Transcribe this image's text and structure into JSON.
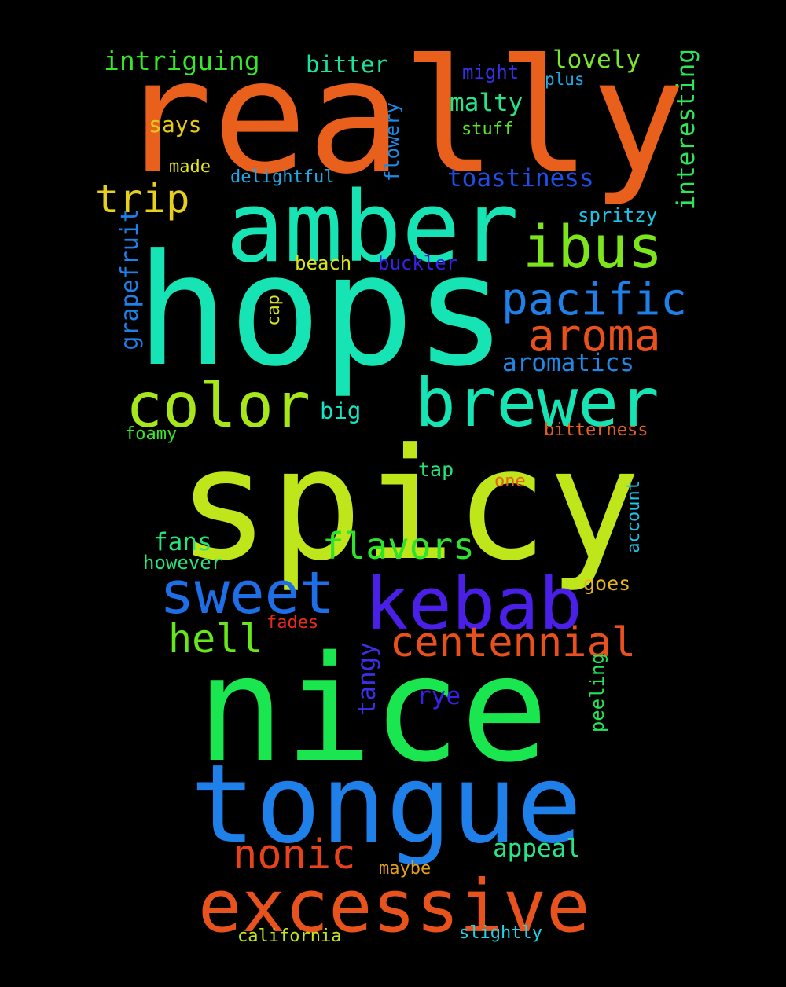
{
  "words": [
    {
      "text": "really",
      "color": "#e8601c"
    },
    {
      "text": "hops",
      "color": "#16e4b4"
    },
    {
      "text": "spicy",
      "color": "#bfe61b"
    },
    {
      "text": "nice",
      "color": "#1ae64f"
    },
    {
      "text": "tongue",
      "color": "#1e80e8"
    },
    {
      "text": "amber",
      "color": "#16e4b4"
    },
    {
      "text": "excessive",
      "color": "#e8521c"
    },
    {
      "text": "kebab",
      "color": "#4a20e8"
    },
    {
      "text": "brewer",
      "color": "#16e4b4"
    },
    {
      "text": "color",
      "color": "#a6e61b"
    },
    {
      "text": "sweet",
      "color": "#1e6ee8"
    },
    {
      "text": "ibus",
      "color": "#7ce61b"
    },
    {
      "text": "pacific",
      "color": "#1e80e8"
    },
    {
      "text": "aroma",
      "color": "#e8501c"
    },
    {
      "text": "centennial",
      "color": "#e8501c"
    },
    {
      "text": "nonic",
      "color": "#e8421c"
    },
    {
      "text": "flavors",
      "color": "#2ee42a"
    },
    {
      "text": "hell",
      "color": "#66e61b"
    },
    {
      "text": "trip",
      "color": "#e6d01b"
    },
    {
      "text": "intriguing",
      "color": "#38e62a"
    },
    {
      "text": "bitter",
      "color": "#16e4a0"
    },
    {
      "text": "lovely",
      "color": "#7ce62a"
    },
    {
      "text": "malty",
      "color": "#26e488"
    },
    {
      "text": "aromatics",
      "color": "#1e8ae8"
    },
    {
      "text": "toastiness",
      "color": "#1e50e8"
    },
    {
      "text": "interesting",
      "color": "#2ee45a"
    },
    {
      "text": "grapefruit",
      "color": "#1e80e8"
    },
    {
      "text": "fans",
      "color": "#26e47a"
    },
    {
      "text": "appeal",
      "color": "#26e488"
    },
    {
      "text": "rye",
      "color": "#3a20e8"
    },
    {
      "text": "tangy",
      "color": "#3a30e8"
    },
    {
      "text": "peeling",
      "color": "#26e45a"
    },
    {
      "text": "big",
      "color": "#16e4c4"
    },
    {
      "text": "says",
      "color": "#e6c81b"
    },
    {
      "text": "might",
      "color": "#3a30e8"
    },
    {
      "text": "plus",
      "color": "#1eaae8"
    },
    {
      "text": "stuff",
      "color": "#5ae62a"
    },
    {
      "text": "made",
      "color": "#e6e61b"
    },
    {
      "text": "delightful",
      "color": "#1eaae8"
    },
    {
      "text": "flowery",
      "color": "#1e8ae8"
    },
    {
      "text": "spritzy",
      "color": "#1ec4e8"
    },
    {
      "text": "beach",
      "color": "#d8e61b"
    },
    {
      "text": "buckler",
      "color": "#3a20e8"
    },
    {
      "text": "cap",
      "color": "#d8e61b"
    },
    {
      "text": "foamy",
      "color": "#38e62a"
    },
    {
      "text": "bitterness",
      "color": "#e8601c"
    },
    {
      "text": "tap",
      "color": "#26e47a"
    },
    {
      "text": "one",
      "color": "#e8601c"
    },
    {
      "text": "account",
      "color": "#1ec4e8"
    },
    {
      "text": "however",
      "color": "#26e47a"
    },
    {
      "text": "goes",
      "color": "#e6b41b"
    },
    {
      "text": "fades",
      "color": "#e82a1c"
    },
    {
      "text": "maybe",
      "color": "#e6a01b"
    },
    {
      "text": "california",
      "color": "#c4e61b"
    },
    {
      "text": "slightly",
      "color": "#1ed4e8"
    }
  ]
}
